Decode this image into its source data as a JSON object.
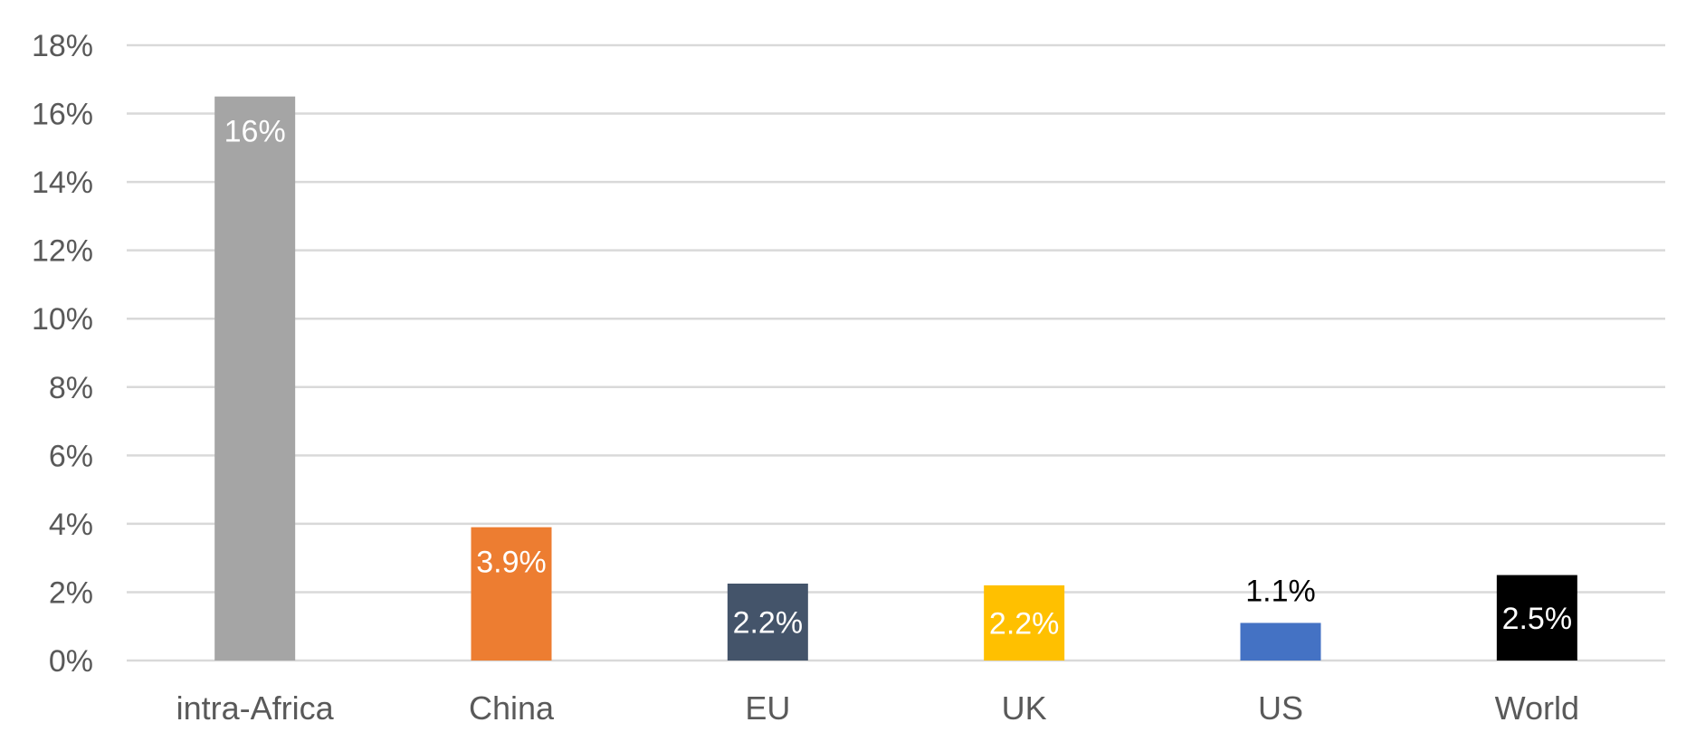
{
  "chart_data": {
    "type": "bar",
    "title": "",
    "xlabel": "",
    "ylabel": "",
    "ylim": [
      0,
      18
    ],
    "y_unit": "%",
    "y_ticks": [
      "0%",
      "2%",
      "4%",
      "6%",
      "8%",
      "10%",
      "12%",
      "14%",
      "16%",
      "18%"
    ],
    "grid": true,
    "legend": "none",
    "categories": [
      "intra-Africa",
      "China",
      "EU",
      "UK",
      "US",
      "World"
    ],
    "values": [
      16.5,
      3.9,
      2.25,
      2.2,
      1.1,
      2.5
    ],
    "data_labels": [
      "16%",
      "3.9%",
      "2.2%",
      "2.2%",
      "1.1%",
      "2.5%"
    ],
    "bar_colors": [
      "#a5a5a5",
      "#ed7d31",
      "#44546a",
      "#ffc000",
      "#4472c4",
      "#000000"
    ],
    "label_colors": [
      "#ffffff",
      "#ffffff",
      "#ffffff",
      "#ffffff",
      "#000000",
      "#ffffff"
    ],
    "label_positions": [
      "inside-top",
      "inside-top",
      "inside-center",
      "inside-center",
      "above",
      "inside-center"
    ]
  }
}
